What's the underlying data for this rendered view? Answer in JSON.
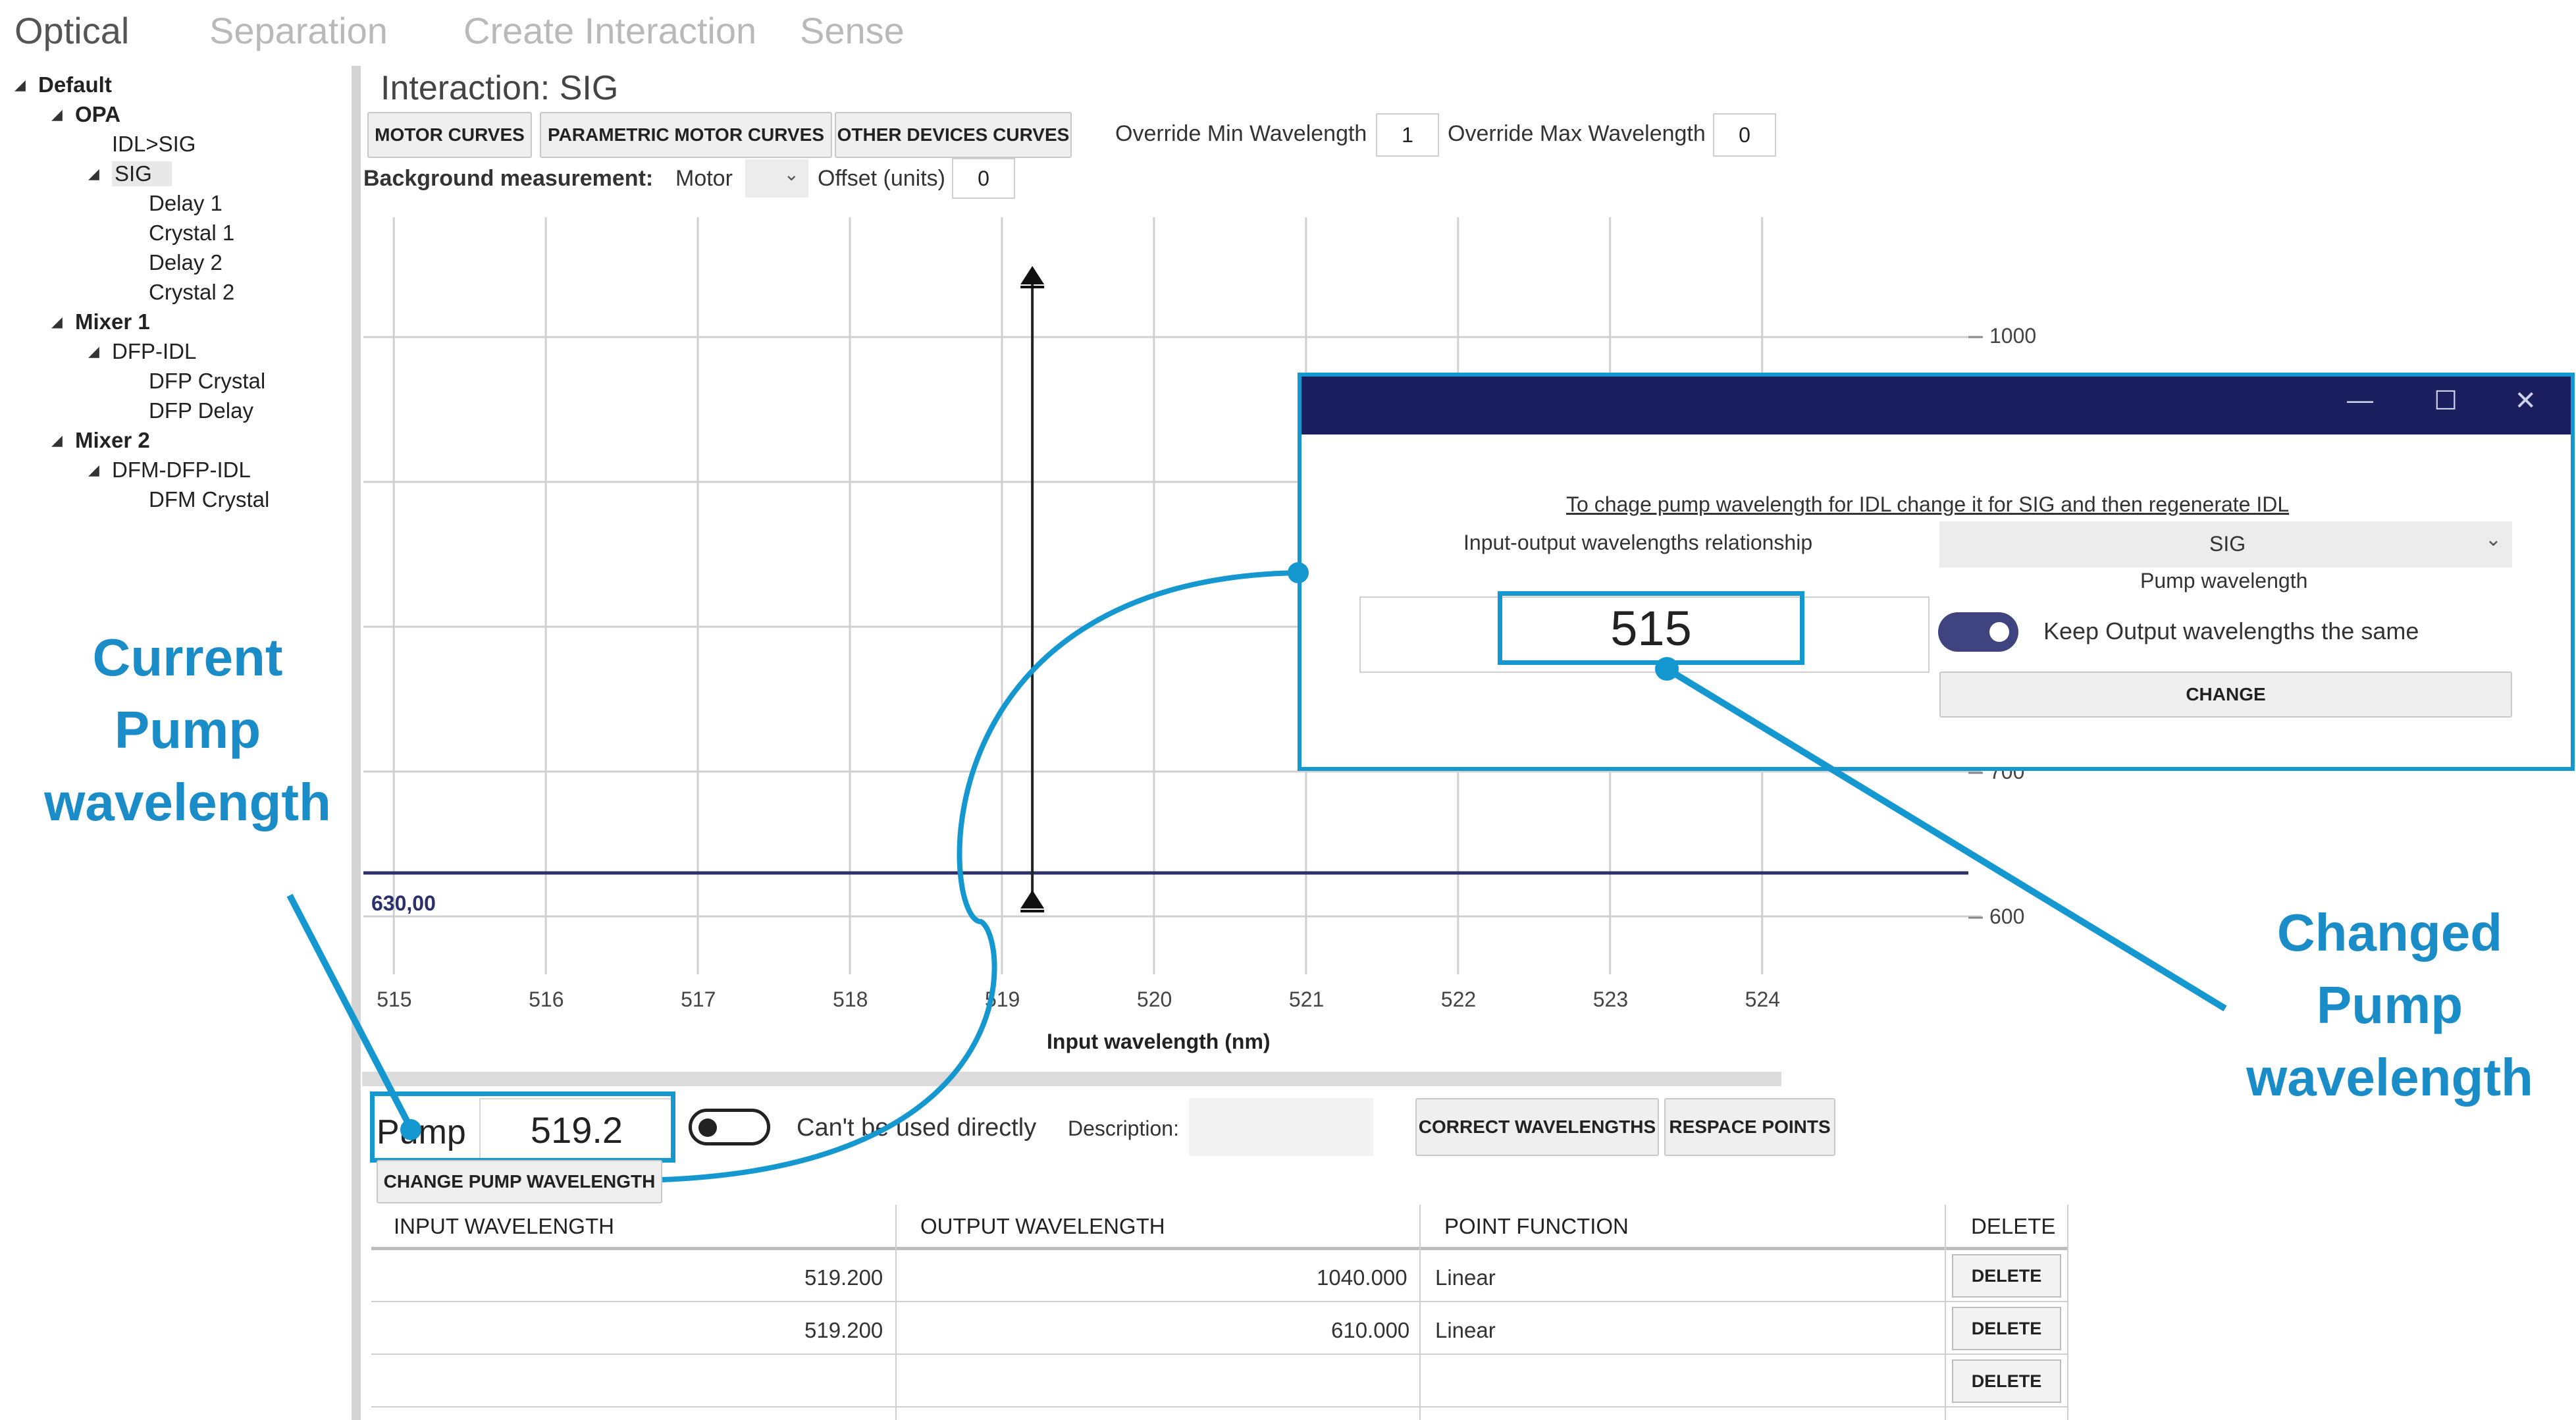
{
  "top_tabs": [
    "Optical",
    "Separation",
    "Create Interaction",
    "Sense"
  ],
  "tree": {
    "items": [
      {
        "label": "Default",
        "expanded": true
      },
      {
        "label": "OPA",
        "expanded": true
      },
      {
        "label": "IDL>SIG"
      },
      {
        "label": "SIG",
        "expanded": true,
        "selected": true
      },
      {
        "label": "Delay 1"
      },
      {
        "label": "Crystal 1"
      },
      {
        "label": "Delay 2"
      },
      {
        "label": "Crystal 2"
      },
      {
        "label": "Mixer 1",
        "expanded": true
      },
      {
        "label": "DFP-IDL",
        "expanded": true
      },
      {
        "label": "DFP Crystal"
      },
      {
        "label": "DFP Delay"
      },
      {
        "label": "Mixer 2",
        "expanded": true
      },
      {
        "label": "DFM-DFP-IDL",
        "expanded": true
      },
      {
        "label": "DFM Crystal"
      }
    ]
  },
  "interaction": {
    "title": "Interaction: SIG",
    "buttons": {
      "motor_curves": "MOTOR CURVES",
      "parametric_motor_curves": "PARAMETRIC MOTOR CURVES",
      "other_devices_curves": "OTHER DEVICES CURVES"
    },
    "override_min_label": "Override Min Wavelength",
    "override_min_value": "1",
    "override_max_label": "Override Max Wavelength",
    "override_max_value": "0",
    "background_label": "Background measurement:",
    "background_value": "Motor",
    "offset_label": "Offset (units)",
    "offset_value": "0"
  },
  "chart_data": {
    "type": "line",
    "xlabel": "Input wavelength (nm)",
    "x_ticks": [
      "515",
      "516",
      "517",
      "518",
      "519",
      "520",
      "521",
      "522",
      "523",
      "524"
    ],
    "xlim": [
      514.8,
      525.4
    ],
    "y_ticks": [
      "1000",
      "700",
      "600"
    ],
    "ylim": [
      580,
      1040
    ],
    "marker_label": "630,00",
    "horizontal_line_y": 630,
    "vertical_marker_x": 519.2,
    "grid": true
  },
  "pump": {
    "label": "Pump",
    "value": "519.2",
    "cant_be_used_label": "Can't be used directly",
    "description_label": "Description:",
    "change_button": "CHANGE PUMP WAVELENGTH",
    "correct_button": "CORRECT WAVELENGTHS",
    "respace_button": "RESPACE POINTS"
  },
  "table": {
    "headers": [
      "INPUT WAVELENGTH",
      "OUTPUT WAVELENGTH",
      "POINT FUNCTION",
      "DELETE"
    ],
    "rows": [
      {
        "input": "519.200",
        "output": "1040.000",
        "function": "Linear",
        "delete": "DELETE"
      },
      {
        "input": "519.200",
        "output": "610.000",
        "function": "Linear",
        "delete": "DELETE"
      },
      {
        "input": "",
        "output": "",
        "function": "",
        "delete": "DELETE"
      }
    ]
  },
  "dialog": {
    "note": "To chage pump wavelength for IDL change it for SIG and then regenerate IDL",
    "relationship_label": "Input-output wavelengths relationship",
    "relationship_value": "SIG",
    "pump_wavelength_label": "Pump wavelength",
    "pump_value": "515",
    "keep_label": "Keep Output wavelengths the same",
    "change_button": "CHANGE"
  },
  "annotations": {
    "current_pump": [
      "Current",
      "Pump",
      "wavelength"
    ],
    "changed_pump": [
      "Changed",
      "Pump",
      "wavelength"
    ]
  },
  "colors": {
    "accent": "#1597d0",
    "dialog_title": "#1b1f5f",
    "line": "#2b2f6b"
  }
}
